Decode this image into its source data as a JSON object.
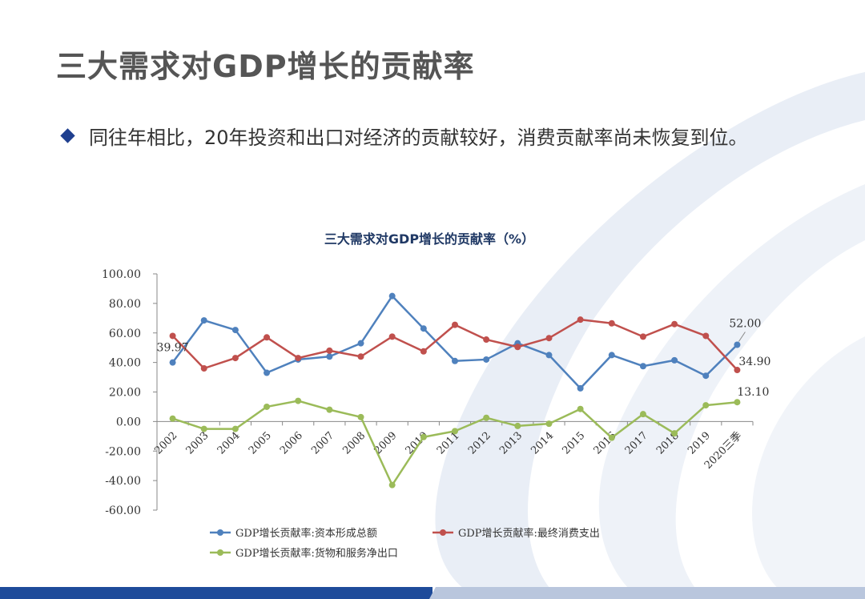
{
  "page": {
    "title": "三大需求对GDP增长的贡献率",
    "bullet_text": "同往年相比，20年投资和出口对经济的贡献较好，消费贡献率尚未恢复到位。"
  },
  "colors": {
    "title": "#555555",
    "bullet": "#1f3f8f",
    "series_investment": "#4f81bd",
    "series_consumption": "#c0504d",
    "series_export": "#9bbb59",
    "footer_dark": "#1e4b9a",
    "footer_light": "#b9c6dd"
  },
  "chart_data": {
    "type": "line",
    "title": "三大需求对GDP增长的贡献率（%）",
    "xlabel": "",
    "ylabel": "",
    "ylim": [
      -60,
      100
    ],
    "yticks": [
      -60,
      -40,
      -20,
      0,
      20,
      40,
      60,
      80,
      100
    ],
    "ytick_labels": [
      "-60.00",
      "-40.00",
      "-20.00",
      "0.00",
      "20.00",
      "40.00",
      "60.00",
      "80.00",
      "100.00"
    ],
    "categories": [
      "2002",
      "2003",
      "2004",
      "2005",
      "2006",
      "2007",
      "2008",
      "2009",
      "2010",
      "2011",
      "2012",
      "2013",
      "2014",
      "2015",
      "2016",
      "2017",
      "2018",
      "2019",
      "2020三季"
    ],
    "series": [
      {
        "name": "GDP增长贡献率:资本形成总额",
        "color": "#4f81bd",
        "values": [
          39.97,
          68.5,
          62.0,
          33.0,
          42.0,
          44.0,
          53.0,
          85.0,
          63.0,
          41.0,
          42.0,
          53.0,
          45.0,
          22.5,
          45.0,
          37.5,
          41.5,
          31.0,
          52.0
        ]
      },
      {
        "name": "GDP增长贡献率:最终消费支出",
        "color": "#c0504d",
        "values": [
          58.0,
          36.0,
          43.0,
          57.0,
          43.0,
          48.0,
          44.0,
          57.5,
          47.5,
          65.5,
          55.5,
          50.5,
          56.5,
          69.0,
          66.5,
          57.5,
          66.0,
          58.0,
          34.9
        ]
      },
      {
        "name": "GDP增长贡献率:货物和服务净出口",
        "color": "#9bbb59",
        "values": [
          2.0,
          -5.0,
          -5.0,
          10.0,
          14.0,
          8.0,
          3.0,
          -43.0,
          -10.5,
          -6.5,
          2.5,
          -3.0,
          -1.5,
          8.5,
          -11.0,
          5.0,
          -8.0,
          11.0,
          13.1
        ]
      }
    ],
    "data_labels": [
      {
        "series": 0,
        "index": 0,
        "text": "39.97"
      },
      {
        "series": 0,
        "index": 18,
        "text": "52.00"
      },
      {
        "series": 1,
        "index": 18,
        "text": "34.90"
      },
      {
        "series": 2,
        "index": 18,
        "text": "13.10"
      }
    ],
    "legend_position": "bottom",
    "grid": false
  }
}
